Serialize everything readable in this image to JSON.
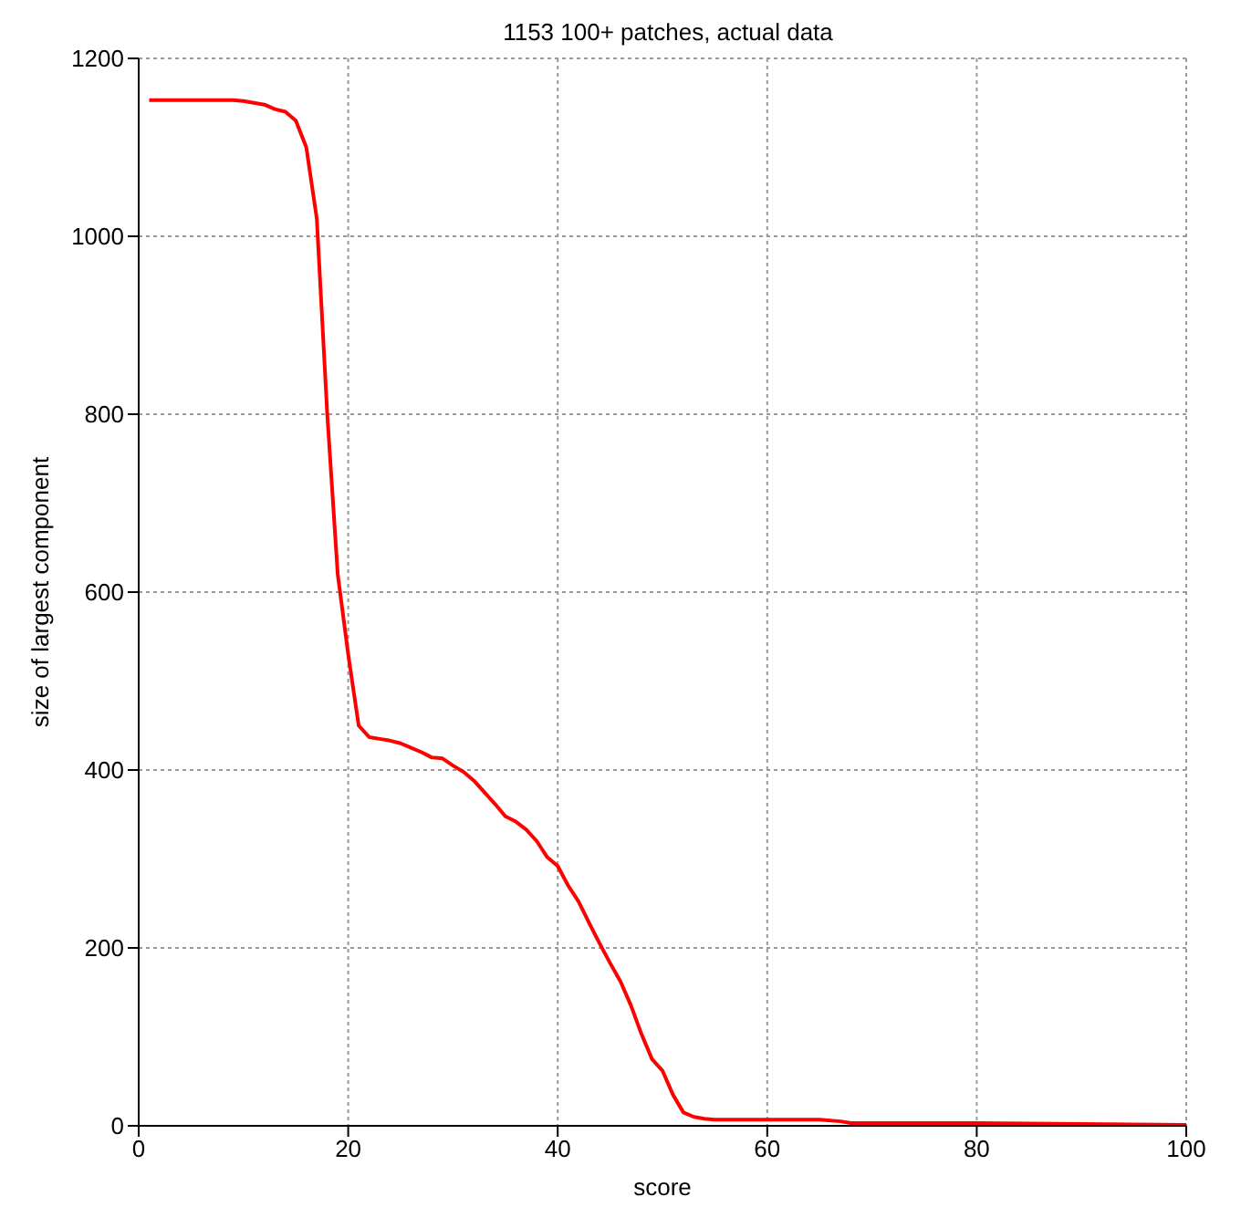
{
  "chart_data": {
    "type": "line",
    "title": "1153 100+ patches, actual data",
    "xlabel": "score",
    "ylabel": "size of largest component",
    "xlim": [
      0,
      100
    ],
    "xticks": [
      0,
      20,
      40,
      60,
      80,
      100
    ],
    "ylim": [
      0,
      1200
    ],
    "yticks": [
      0,
      200,
      400,
      600,
      800,
      1000,
      1200
    ],
    "grid": true,
    "marker": "none",
    "line_style": "solid",
    "series": [
      {
        "color": "#ff0000",
        "x": [
          1,
          9,
          10,
          12,
          13,
          14,
          15,
          16,
          17,
          18,
          19,
          20,
          21,
          22,
          23,
          24,
          25,
          26,
          27,
          28,
          29,
          30,
          31,
          32,
          33,
          34,
          35,
          36,
          37,
          38,
          39,
          40,
          41,
          42,
          43,
          44,
          45,
          46,
          47,
          48,
          49,
          50,
          51,
          52,
          53,
          54,
          55,
          60,
          65,
          67,
          68,
          80,
          90,
          100
        ],
        "values": [
          1153,
          1153,
          1152,
          1148,
          1143,
          1140,
          1130,
          1100,
          1020,
          800,
          620,
          530,
          450,
          437,
          435,
          433,
          430,
          425,
          420,
          414,
          413,
          405,
          398,
          388,
          375,
          362,
          348,
          342,
          333,
          320,
          302,
          292,
          270,
          252,
          228,
          205,
          183,
          162,
          135,
          103,
          75,
          62,
          35,
          15,
          10,
          8,
          7,
          7,
          7,
          5,
          3,
          3,
          2,
          1
        ]
      }
    ]
  }
}
